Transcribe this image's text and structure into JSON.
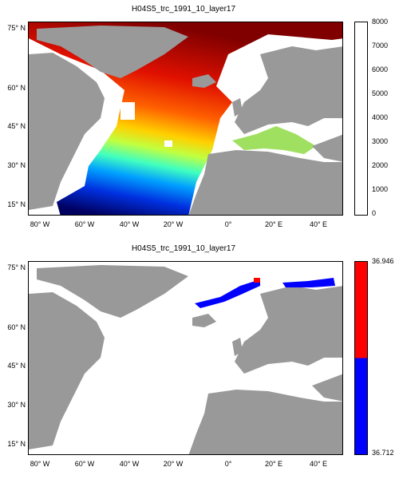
{
  "top_panel": {
    "title": "H04S5_trc_1991_10_layer17",
    "y_ticks": [
      "75° N",
      "60° N",
      "45° N",
      "30° N",
      "15° N"
    ],
    "x_ticks": [
      "80° W",
      "60° W",
      "40° W",
      "20° W",
      "0°",
      "20° E",
      "40° E"
    ],
    "colorbar": {
      "ticks": [
        "8000",
        "7000",
        "6000",
        "5000",
        "4000",
        "3000",
        "2000",
        "1000",
        "0"
      ],
      "range": [
        0,
        8000
      ],
      "colormap": "jet"
    }
  },
  "bottom_panel": {
    "title": "H04S5_trc_1991_10_layer17",
    "y_ticks": [
      "75° N",
      "60° N",
      "45° N",
      "30° N",
      "15° N"
    ],
    "x_ticks": [
      "80° W",
      "60° W",
      "40° W",
      "20° W",
      "0°",
      "20° E",
      "40° E"
    ],
    "colorbar": {
      "ticks": [
        "36.946",
        "36.712"
      ],
      "range": [
        36.712,
        36.946
      ],
      "colors": [
        "#ff0000",
        "#0000ff"
      ]
    }
  },
  "colors": {
    "land": "#999999",
    "frame": "#000000"
  }
}
